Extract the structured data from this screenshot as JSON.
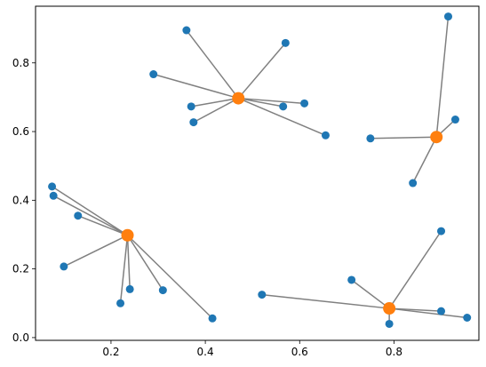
{
  "chart_data": {
    "type": "scatter",
    "title": "",
    "xlabel": "",
    "ylabel": "",
    "xlim": [
      0.04,
      0.98
    ],
    "ylim": [
      -0.008,
      0.965
    ],
    "x_ticks": [
      0.2,
      0.4,
      0.6,
      0.8
    ],
    "y_ticks": [
      0.0,
      0.2,
      0.4,
      0.6,
      0.8
    ],
    "x_tick_labels": [
      "0.2",
      "0.4",
      "0.6",
      "0.8"
    ],
    "y_tick_labels": [
      "0.0",
      "0.2",
      "0.4",
      "0.6",
      "0.8"
    ],
    "grid": false,
    "colors": {
      "points": "#1f77b4",
      "centers": "#ff7f0e",
      "edges": "#808080"
    },
    "clusters": [
      {
        "center": [
          0.47,
          0.697
        ],
        "points": [
          [
            0.36,
            0.895
          ],
          [
            0.57,
            0.858
          ],
          [
            0.29,
            0.767
          ],
          [
            0.37,
            0.673
          ],
          [
            0.375,
            0.627
          ],
          [
            0.565,
            0.673
          ],
          [
            0.61,
            0.682
          ],
          [
            0.655,
            0.589
          ]
        ]
      },
      {
        "center": [
          0.89,
          0.584
        ],
        "points": [
          [
            0.915,
            0.935
          ],
          [
            0.93,
            0.635
          ],
          [
            0.75,
            0.58
          ],
          [
            0.84,
            0.45
          ]
        ]
      },
      {
        "center": [
          0.235,
          0.298
        ],
        "points": [
          [
            0.075,
            0.44
          ],
          [
            0.078,
            0.413
          ],
          [
            0.13,
            0.355
          ],
          [
            0.1,
            0.207
          ],
          [
            0.22,
            0.1
          ],
          [
            0.24,
            0.141
          ],
          [
            0.31,
            0.138
          ],
          [
            0.415,
            0.056
          ]
        ]
      },
      {
        "center": [
          0.79,
          0.085
        ],
        "points": [
          [
            0.9,
            0.31
          ],
          [
            0.71,
            0.168
          ],
          [
            0.52,
            0.125
          ],
          [
            0.9,
            0.077
          ],
          [
            0.955,
            0.058
          ],
          [
            0.79,
            0.04
          ]
        ]
      }
    ]
  }
}
